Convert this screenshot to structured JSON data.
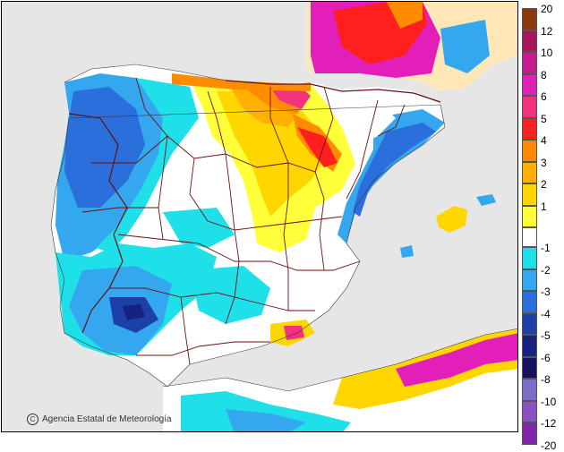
{
  "credit": {
    "symbol": "C",
    "text": "Agencia Estatal de Meteorología"
  },
  "legend": {
    "upper": [
      {
        "label": "20",
        "color": "#8b3a0f"
      },
      {
        "label": "12",
        "color": "#a8175a"
      },
      {
        "label": "10",
        "color": "#c61a8f"
      },
      {
        "label": "8",
        "color": "#e21fb8"
      },
      {
        "label": "6",
        "color": "#f2327c"
      },
      {
        "label": "5",
        "color": "#ff1f1f"
      },
      {
        "label": "4",
        "color": "#ff8c00"
      },
      {
        "label": "3",
        "color": "#ffb000"
      },
      {
        "label": "2",
        "color": "#ffd600"
      },
      {
        "label": "1",
        "color": "#ffff3a"
      }
    ],
    "neutral": {
      "label": "-1",
      "color": "#ffffff"
    },
    "lower": [
      {
        "label": "-2",
        "color": "#1fe0e8"
      },
      {
        "label": "-3",
        "color": "#35a7ef"
      },
      {
        "label": "-4",
        "color": "#2a6fdc"
      },
      {
        "label": "-5",
        "color": "#1c3fa8"
      },
      {
        "label": "-6",
        "color": "#16237e"
      },
      {
        "label": "-8",
        "color": "#171360"
      },
      {
        "label": "-10",
        "color": "#7b6ec8"
      },
      {
        "label": "-12",
        "color": "#8c50c0"
      },
      {
        "label": "-20",
        "color": "#7d27a8"
      }
    ]
  },
  "colors": {
    "sea": "#e6e6e6",
    "land_neutral": "#ffffff",
    "border": "#6b0f0f"
  }
}
